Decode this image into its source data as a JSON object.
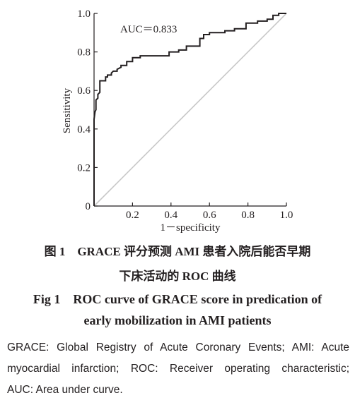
{
  "chart_data": {
    "type": "line",
    "xlabel": "1－specificity",
    "ylabel": "Sensitivity",
    "xlim": [
      0,
      1
    ],
    "ylim": [
      0,
      1
    ],
    "x_ticks": [
      "0.2",
      "0.4",
      "0.6",
      "0.8",
      "1.0"
    ],
    "y_ticks": [
      "0",
      "0.2",
      "0.4",
      "0.6",
      "0.8",
      "1.0"
    ],
    "annotation": "AUC＝0.833",
    "grid": false,
    "reference_line": {
      "x": [
        0,
        1
      ],
      "y": [
        0,
        1
      ],
      "color": "#c8c8c8"
    },
    "series": [
      {
        "color": "#231f20",
        "x": [
          0,
          0,
          0.005,
          0.01,
          0.01,
          0.02,
          0.02,
          0.03,
          0.03,
          0.06,
          0.06,
          0.07,
          0.07,
          0.09,
          0.09,
          0.1,
          0.12,
          0.12,
          0.14,
          0.14,
          0.17,
          0.17,
          0.2,
          0.2,
          0.24,
          0.24,
          0.39,
          0.39,
          0.44,
          0.44,
          0.48,
          0.48,
          0.55,
          0.55,
          0.57,
          0.57,
          0.6,
          0.6,
          0.68,
          0.68,
          0.73,
          0.73,
          0.79,
          0.79,
          0.85,
          0.85,
          0.9,
          0.9,
          0.93,
          0.93,
          0.96,
          0.96,
          1.0
        ],
        "y": [
          0,
          0.45,
          0.49,
          0.5,
          0.55,
          0.56,
          0.58,
          0.59,
          0.65,
          0.65,
          0.67,
          0.67,
          0.68,
          0.68,
          0.69,
          0.7,
          0.7,
          0.71,
          0.72,
          0.73,
          0.73,
          0.75,
          0.75,
          0.77,
          0.77,
          0.78,
          0.78,
          0.8,
          0.8,
          0.81,
          0.81,
          0.83,
          0.83,
          0.87,
          0.87,
          0.89,
          0.89,
          0.9,
          0.9,
          0.91,
          0.91,
          0.92,
          0.92,
          0.95,
          0.95,
          0.96,
          0.96,
          0.97,
          0.97,
          0.99,
          0.99,
          1.0,
          1.0
        ]
      }
    ]
  },
  "captions": {
    "cn_line1": "图 1　GRACE 评分预测 AMI 患者入院后能否早期",
    "cn_line2": "下床活动的 ROC 曲线",
    "en_line1": "Fig 1　ROC curve of GRACE score in predication of",
    "en_line2": "early mobilization in AMI patients"
  },
  "notes": {
    "line1": "GRACE: Global Registry of Acute Coronary Events; AMI: Acute",
    "line2": "myocardial infarction; ROC: Receiver operating characteristic;",
    "line3": "AUC: Area under curve."
  }
}
